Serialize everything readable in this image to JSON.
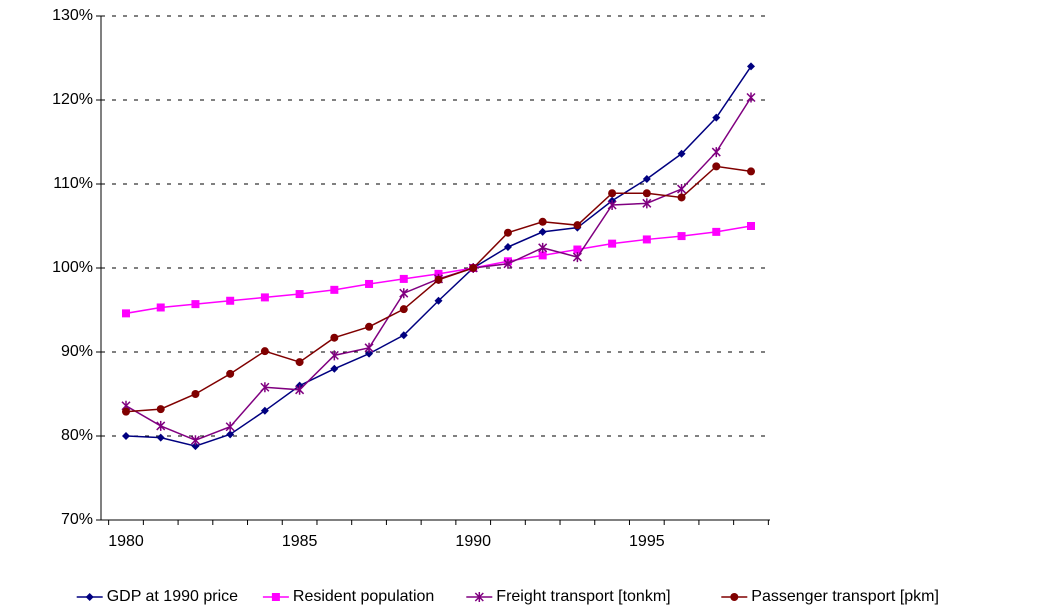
{
  "chart_data": {
    "type": "line",
    "categories": [
      "1980",
      null,
      null,
      null,
      null,
      "1985",
      null,
      null,
      null,
      null,
      "1990",
      null,
      null,
      null,
      null,
      "1995",
      null,
      null,
      null
    ],
    "series": [
      {
        "name": "GDP at 1990 price",
        "color": "#000080",
        "marker": "diamond",
        "values": [
          80,
          79.8,
          78.8,
          80.2,
          83,
          86,
          88,
          89.8,
          92,
          96.1,
          100,
          102.5,
          104.3,
          104.8,
          108,
          110.6,
          113.6,
          117.9,
          124
        ]
      },
      {
        "name": "Resident population",
        "color": "#ff00ff",
        "marker": "square",
        "values": [
          94.6,
          95.3,
          95.7,
          96.1,
          96.5,
          96.9,
          97.4,
          98.1,
          98.7,
          99.3,
          100,
          100.8,
          101.5,
          102.2,
          102.9,
          103.4,
          103.8,
          104.3,
          105
        ]
      },
      {
        "name": "Freight transport [tonkm]",
        "color": "#800080",
        "marker": "star",
        "values": [
          83.6,
          81.2,
          79.5,
          81.1,
          85.8,
          85.5,
          89.6,
          90.5,
          97,
          98.7,
          100,
          100.5,
          102.4,
          101.3,
          107.5,
          107.7,
          109.4,
          113.8,
          120.3
        ]
      },
      {
        "name": "Passenger transport [pkm]",
        "color": "#800000",
        "marker": "circle",
        "values": [
          82.9,
          83.2,
          85,
          87.4,
          90.1,
          88.8,
          91.7,
          93,
          95.1,
          98.6,
          100,
          104.2,
          105.5,
          105.1,
          108.9,
          108.9,
          108.4,
          112.1,
          111.5
        ]
      }
    ],
    "ylim": [
      70,
      130
    ],
    "yticks": [
      {
        "value": 70,
        "label": "70%"
      },
      {
        "value": 80,
        "label": "80%"
      },
      {
        "value": 90,
        "label": "90%"
      },
      {
        "value": 100,
        "label": "100%"
      },
      {
        "value": 110,
        "label": "110%"
      },
      {
        "value": 120,
        "label": "120%"
      },
      {
        "value": 130,
        "label": "130%"
      }
    ],
    "grid": true,
    "legend": "bottom"
  }
}
